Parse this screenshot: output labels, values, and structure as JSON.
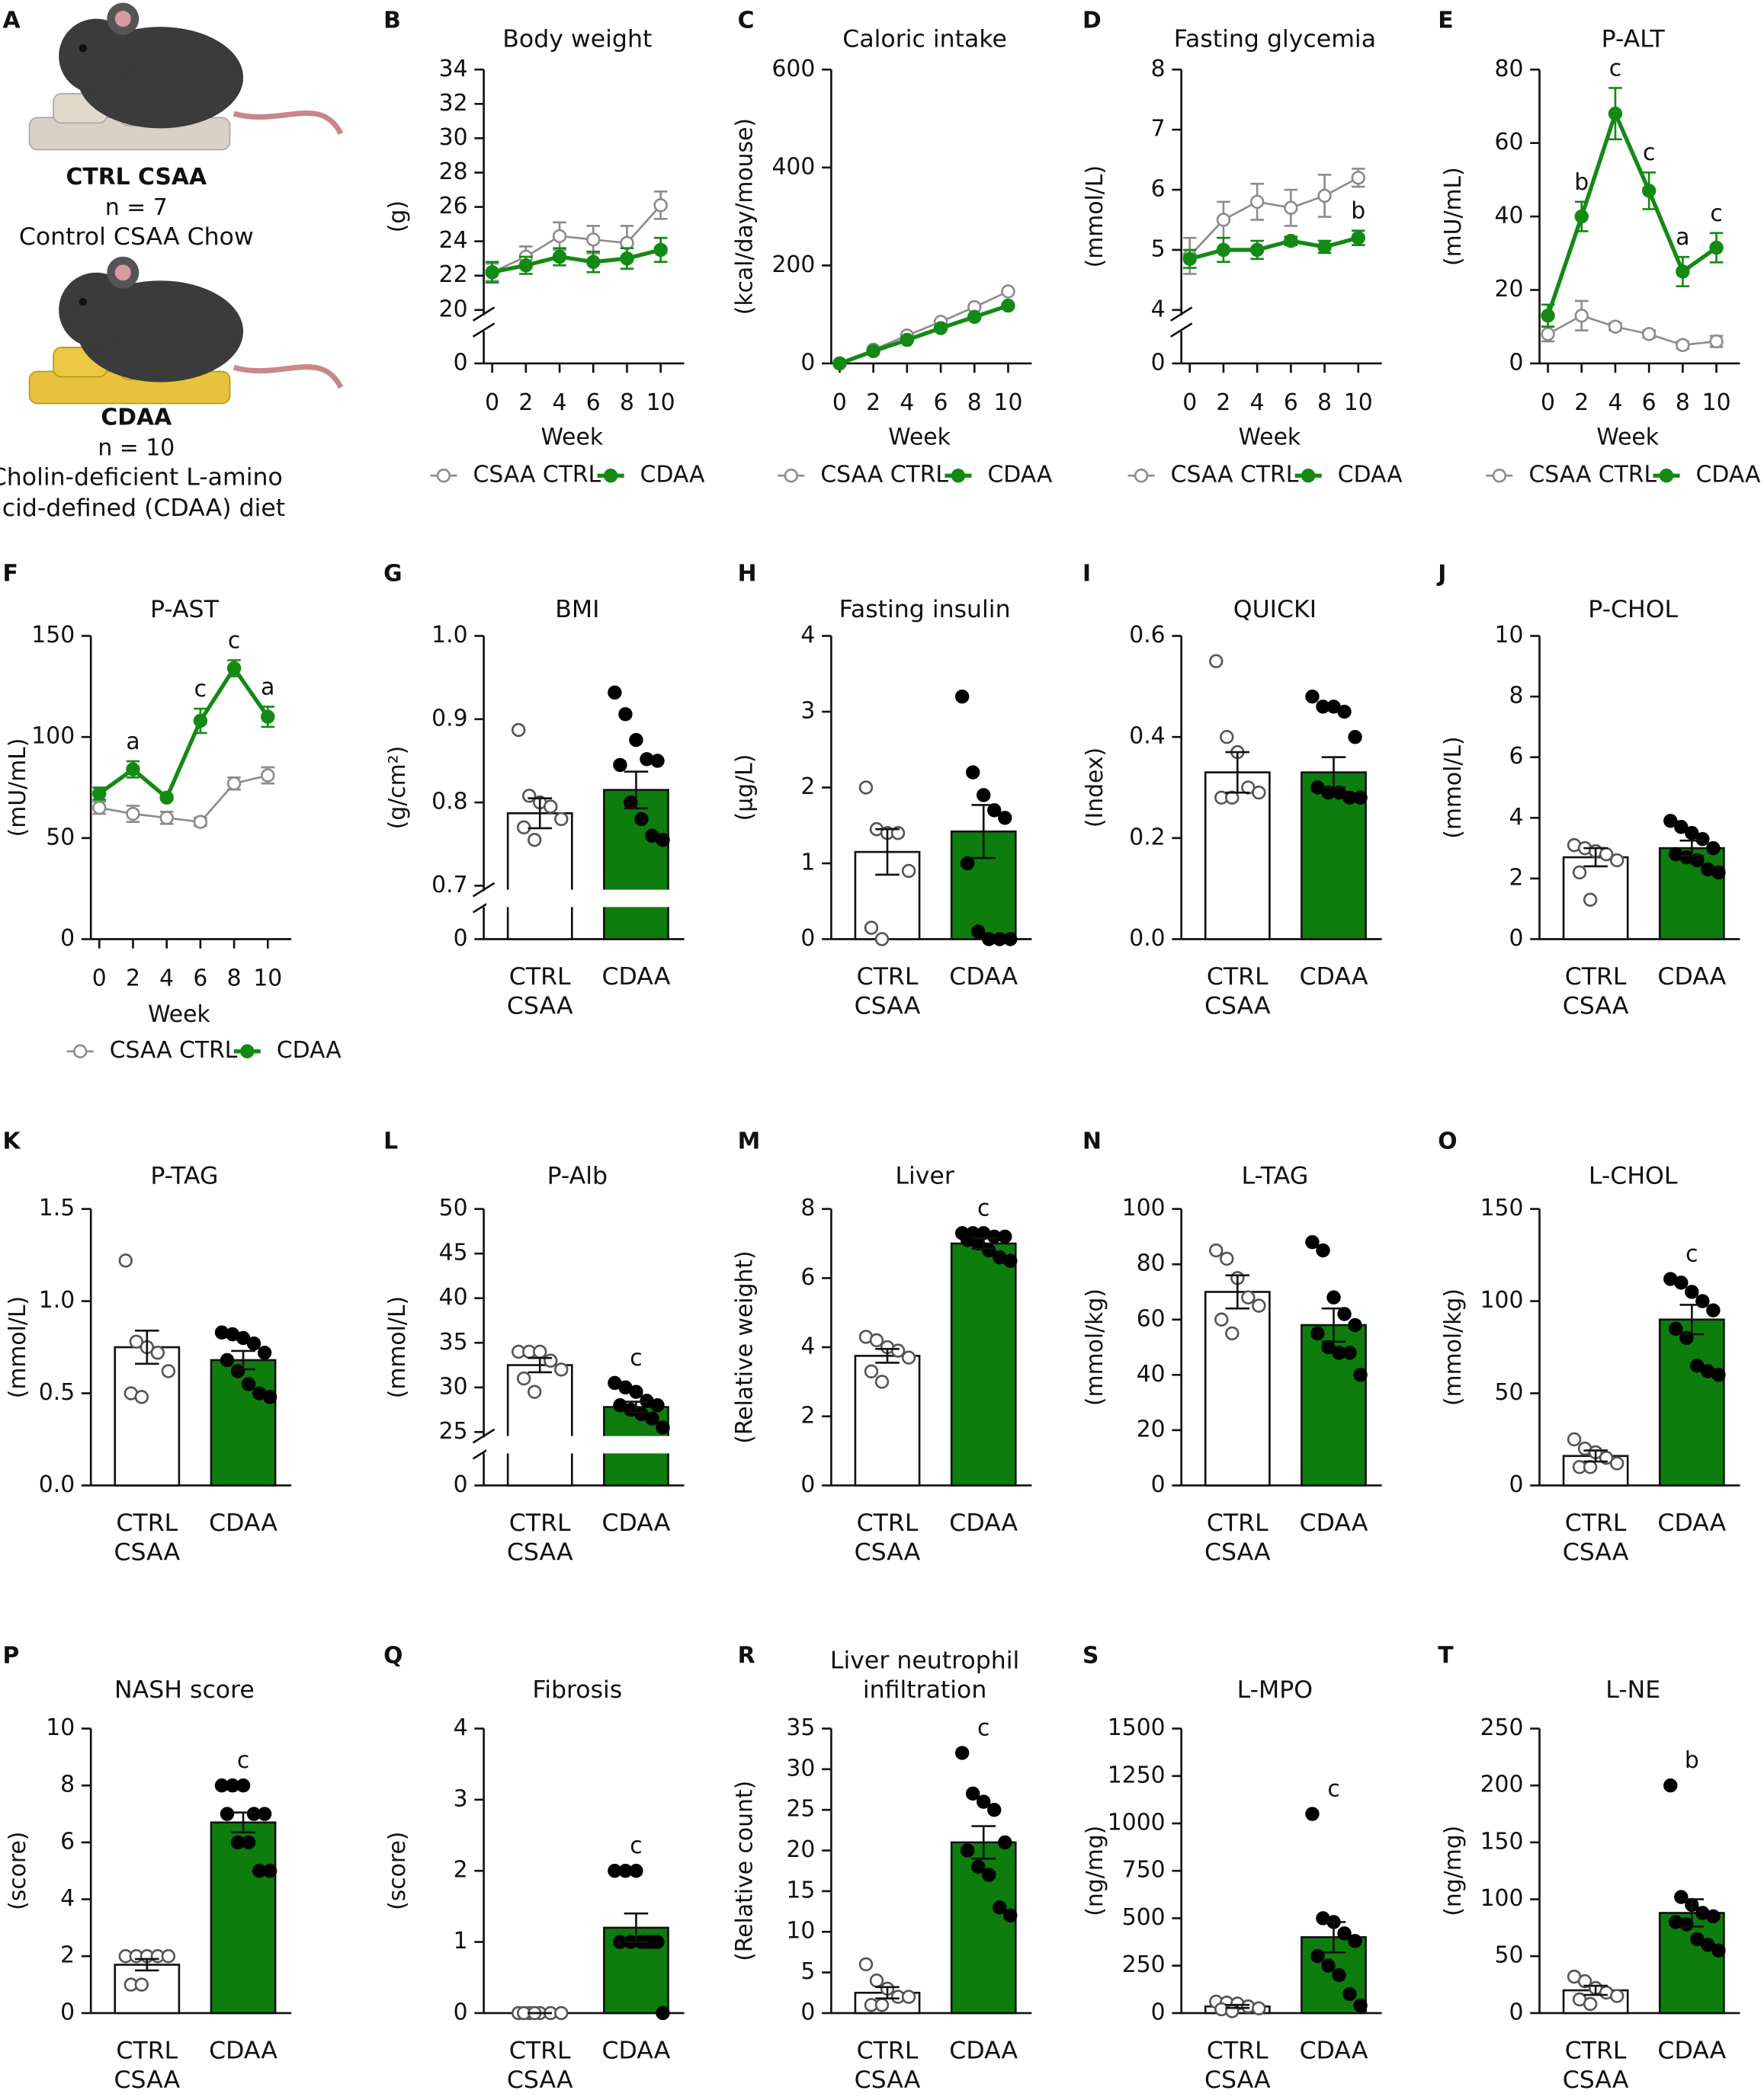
{
  "illustration": {
    "panel": "A",
    "groups": [
      {
        "name": "CTRL CSAA",
        "n": "n = 7",
        "diet": "Control CSAA Chow"
      },
      {
        "name": "CDAA",
        "n": "n = 10",
        "diet": "Cholin-deficient L-amino acid-defined (CDAA) diet"
      }
    ]
  },
  "chart_data": [
    {
      "panel": "B",
      "type": "line",
      "title": "Body weight",
      "ylabel": "(g)",
      "xlabel": "Week",
      "x": [
        0,
        2,
        4,
        6,
        8,
        10
      ],
      "xlim": [
        -0.5,
        11
      ],
      "xticks": [
        0,
        2,
        4,
        6,
        8,
        10
      ],
      "ylim": [
        20,
        34
      ],
      "yticks": [
        20,
        22,
        24,
        26,
        28,
        30,
        32,
        34
      ],
      "yticks_below_break": [
        0
      ],
      "series": [
        {
          "name": "CSAA CTRL",
          "color": "#8c8c8c",
          "marker_fill": "#ffffff",
          "values": [
            22.2,
            23.1,
            24.3,
            24.1,
            23.9,
            26.1
          ],
          "errors": [
            0.5,
            0.6,
            0.8,
            0.8,
            1.0,
            0.8
          ]
        },
        {
          "name": "CDAA",
          "color": "#138a13",
          "marker_fill": "#138a13",
          "values": [
            22.2,
            22.6,
            23.1,
            22.8,
            23.0,
            23.5
          ],
          "errors": [
            0.6,
            0.5,
            0.5,
            0.6,
            0.6,
            0.7
          ]
        }
      ]
    },
    {
      "panel": "C",
      "type": "line",
      "title": "Caloric intake",
      "ylabel": "(kcal/day/mouse)",
      "xlabel": "Week",
      "x": [
        0,
        2,
        4,
        6,
        8,
        10
      ],
      "xlim": [
        -0.5,
        11
      ],
      "xticks": [
        0,
        2,
        4,
        6,
        8,
        10
      ],
      "ylim": [
        0,
        600
      ],
      "yticks": [
        0,
        200,
        400,
        600
      ],
      "series": [
        {
          "name": "CSAA CTRL",
          "color": "#8c8c8c",
          "marker_fill": "#ffffff",
          "values": [
            0,
            28,
            57,
            85,
            115,
            147
          ],
          "errors": [
            0,
            1,
            2,
            2,
            2,
            2
          ]
        },
        {
          "name": "CDAA",
          "color": "#138a13",
          "marker_fill": "#138a13",
          "values": [
            0,
            25,
            48,
            72,
            95,
            118
          ],
          "errors": [
            0,
            1,
            2,
            2,
            2,
            2
          ]
        }
      ]
    },
    {
      "panel": "D",
      "type": "line",
      "title": "Fasting glycemia",
      "ylabel": "(mmol/L)",
      "xlabel": "Week",
      "x": [
        0,
        2,
        4,
        6,
        8,
        10
      ],
      "xlim": [
        -0.5,
        11
      ],
      "xticks": [
        0,
        2,
        4,
        6,
        8,
        10
      ],
      "ylim": [
        4,
        8
      ],
      "yticks": [
        4,
        5,
        6,
        7,
        8
      ],
      "yticks_below_break": [
        0
      ],
      "series": [
        {
          "name": "CSAA CTRL",
          "color": "#8c8c8c",
          "marker_fill": "#ffffff",
          "values": [
            4.9,
            5.5,
            5.8,
            5.7,
            5.9,
            6.2
          ],
          "errors": [
            0.3,
            0.3,
            0.3,
            0.3,
            0.35,
            0.15
          ]
        },
        {
          "name": "CDAA",
          "color": "#138a13",
          "marker_fill": "#138a13",
          "values": [
            4.85,
            5.0,
            5.0,
            5.15,
            5.05,
            5.2
          ],
          "errors": [
            0.15,
            0.2,
            0.15,
            0.07,
            0.1,
            0.12
          ],
          "annotations": [
            null,
            null,
            null,
            null,
            null,
            "b"
          ]
        }
      ]
    },
    {
      "panel": "E",
      "type": "line",
      "title": "P-ALT",
      "ylabel": "(mU/mL)",
      "xlabel": "Week",
      "x": [
        0,
        2,
        4,
        6,
        8,
        10
      ],
      "xlim": [
        -0.5,
        11
      ],
      "xticks": [
        0,
        2,
        4,
        6,
        8,
        10
      ],
      "ylim": [
        0,
        80
      ],
      "yticks": [
        0,
        20,
        40,
        60,
        80
      ],
      "series": [
        {
          "name": "CSAA CTRL",
          "color": "#8c8c8c",
          "marker_fill": "#ffffff",
          "values": [
            8,
            13,
            10,
            8,
            5,
            6
          ],
          "errors": [
            2,
            4,
            1,
            1,
            1,
            1.5
          ]
        },
        {
          "name": "CDAA",
          "color": "#138a13",
          "marker_fill": "#138a13",
          "values": [
            13,
            40,
            68,
            47,
            25,
            31.5
          ],
          "errors": [
            3,
            4,
            7,
            5,
            4,
            4
          ],
          "annotations": [
            null,
            "b",
            "c",
            "c",
            "a",
            "c"
          ]
        }
      ]
    },
    {
      "panel": "F",
      "type": "line",
      "title": "P-AST",
      "ylabel": "(mU/mL)",
      "xlabel": "Week",
      "x": [
        0,
        2,
        4,
        6,
        8,
        10
      ],
      "xlim": [
        -0.5,
        11
      ],
      "xticks": [
        0,
        2,
        4,
        6,
        8,
        10
      ],
      "ylim": [
        0,
        150
      ],
      "yticks": [
        0,
        50,
        100,
        150
      ],
      "series": [
        {
          "name": "CSAA CTRL",
          "color": "#8c8c8c",
          "marker_fill": "#ffffff",
          "values": [
            65,
            62,
            60,
            58,
            77,
            81
          ],
          "errors": [
            3,
            4,
            3,
            2,
            3,
            4
          ]
        },
        {
          "name": "CDAA",
          "color": "#138a13",
          "marker_fill": "#138a13",
          "values": [
            72,
            84,
            70,
            108,
            134,
            110
          ],
          "errors": [
            3,
            4,
            1,
            6,
            4,
            5
          ],
          "annotations": [
            null,
            "a",
            null,
            "c",
            "c",
            "a"
          ]
        }
      ]
    },
    {
      "panel": "G",
      "type": "bar",
      "title": "BMI",
      "ylabel": "(g/cm²)",
      "categories": [
        "CTRL CSAA",
        "CDAA"
      ],
      "colors": [
        "#ffffff",
        "#0d7d0d"
      ],
      "ylim": [
        0.7,
        1
      ],
      "yticks": [
        0.7,
        0.8,
        0.9,
        {
          "value": 1,
          "label": "1.0"
        }
      ],
      "yticks_below_break": [
        0
      ],
      "values": [
        0.787,
        0.815
      ],
      "errors": [
        0.018,
        0.022
      ],
      "points": [
        [
          0.887,
          0.808,
          0.8,
          0.795,
          0.78,
          0.77,
          0.755
        ],
        [
          0.932,
          0.906,
          0.875,
          0.852,
          0.85,
          0.845,
          0.8,
          0.78,
          0.76,
          0.755
        ]
      ]
    },
    {
      "panel": "H",
      "type": "bar",
      "title": "Fasting insulin",
      "ylabel": "(µg/L)",
      "categories": [
        "CTRL CSAA",
        "CDAA"
      ],
      "colors": [
        "#ffffff",
        "#0d7d0d"
      ],
      "ylim": [
        0,
        4
      ],
      "yticks": [
        0,
        1,
        2,
        3,
        4
      ],
      "values": [
        1.15,
        1.42
      ],
      "errors": [
        0.3,
        0.35
      ],
      "points": [
        [
          2.0,
          1.45,
          1.4,
          1.4,
          0.9,
          0.15,
          0.0
        ],
        [
          3.2,
          2.2,
          1.9,
          1.7,
          1.6,
          1.0,
          0.1,
          0.0,
          0.0,
          0.0
        ]
      ]
    },
    {
      "panel": "I",
      "type": "bar",
      "title": "QUICKI",
      "ylabel": "(Index)",
      "categories": [
        "CTRL CSAA",
        "CDAA"
      ],
      "colors": [
        "#ffffff",
        "#0d7d0d"
      ],
      "ylim": [
        0,
        0.6
      ],
      "yticks": [
        {
          "value": 0,
          "label": "0.0"
        },
        0.2,
        0.4,
        0.6
      ],
      "values": [
        0.33,
        0.33
      ],
      "errors": [
        0.04,
        0.03
      ],
      "points": [
        [
          0.55,
          0.4,
          0.37,
          0.3,
          0.29,
          0.28,
          0.28
        ],
        [
          0.48,
          0.46,
          0.46,
          0.45,
          0.4,
          0.3,
          0.29,
          0.29,
          0.28,
          0.28
        ]
      ]
    },
    {
      "panel": "J",
      "type": "bar",
      "title": "P-CHOL",
      "ylabel": "(mmol/L)",
      "categories": [
        "CTRL CSAA",
        "CDAA"
      ],
      "colors": [
        "#ffffff",
        "#0d7d0d"
      ],
      "ylim": [
        0,
        10
      ],
      "yticks": [
        0,
        2,
        4,
        6,
        8,
        10
      ],
      "values": [
        2.7,
        3.0
      ],
      "errors": [
        0.3,
        0.25
      ],
      "points": [
        [
          3.1,
          3.0,
          2.9,
          2.8,
          2.6,
          2.2,
          1.3
        ],
        [
          3.9,
          3.7,
          3.5,
          3.3,
          3.0,
          2.8,
          2.7,
          2.6,
          2.3,
          2.2
        ]
      ]
    },
    {
      "panel": "K",
      "type": "bar",
      "title": "P-TAG",
      "ylabel": "(mmol/L)",
      "categories": [
        "CTRL CSAA",
        "CDAA"
      ],
      "colors": [
        "#ffffff",
        "#0d7d0d"
      ],
      "ylim": [
        0,
        1.5
      ],
      "yticks": [
        {
          "value": 0,
          "label": "0.0"
        },
        0.5,
        {
          "value": 1,
          "label": "1.0"
        },
        1.5
      ],
      "values": [
        0.75,
        0.68
      ],
      "errors": [
        0.09,
        0.05
      ],
      "points": [
        [
          1.22,
          0.78,
          0.75,
          0.72,
          0.62,
          0.5,
          0.48
        ],
        [
          0.83,
          0.82,
          0.8,
          0.77,
          0.72,
          0.68,
          0.62,
          0.55,
          0.5,
          0.48
        ]
      ]
    },
    {
      "panel": "L",
      "type": "bar",
      "title": "P-Alb",
      "ylabel": "(mmol/L)",
      "categories": [
        "CTRL CSAA",
        "CDAA"
      ],
      "colors": [
        "#ffffff",
        "#0d7d0d"
      ],
      "ylim": [
        25,
        50
      ],
      "yticks": [
        25,
        30,
        35,
        40,
        45,
        50
      ],
      "yticks_below_break": [
        0
      ],
      "values": [
        32.5,
        27.8
      ],
      "errors": [
        0.8,
        0.6
      ],
      "annotations": [
        null,
        "c"
      ],
      "points": [
        [
          34,
          34,
          34,
          33,
          32,
          31,
          29.5
        ],
        [
          30.5,
          30,
          29.5,
          28.5,
          28,
          28,
          27.5,
          27,
          26.5,
          25.5
        ]
      ]
    },
    {
      "panel": "M",
      "type": "bar",
      "title": "Liver",
      "ylabel": "(Relative weight)",
      "categories": [
        "CTRL CSAA",
        "CDAA"
      ],
      "colors": [
        "#ffffff",
        "#0d7d0d"
      ],
      "ylim": [
        0,
        8
      ],
      "yticks": [
        0,
        2,
        4,
        6,
        8
      ],
      "values": [
        3.75,
        7.0
      ],
      "errors": [
        0.2,
        0.15
      ],
      "annotations": [
        null,
        "c"
      ],
      "points": [
        [
          4.3,
          4.2,
          4.0,
          3.9,
          3.7,
          3.3,
          3.0
        ],
        [
          7.3,
          7.3,
          7.3,
          7.2,
          7.2,
          7.1,
          7.0,
          6.8,
          6.6,
          6.5
        ]
      ]
    },
    {
      "panel": "N",
      "type": "bar",
      "title": "L-TAG",
      "ylabel": "(mmol/kg)",
      "categories": [
        "CTRL CSAA",
        "CDAA"
      ],
      "colors": [
        "#ffffff",
        "#0d7d0d"
      ],
      "ylim": [
        0,
        100
      ],
      "yticks": [
        0,
        20,
        40,
        60,
        80,
        100
      ],
      "values": [
        70,
        58
      ],
      "errors": [
        6,
        6
      ],
      "points": [
        [
          85,
          82,
          75,
          68,
          65,
          60,
          55
        ],
        [
          88,
          85,
          68,
          62,
          58,
          55,
          50,
          48,
          48,
          40
        ]
      ]
    },
    {
      "panel": "O",
      "type": "bar",
      "title": "L-CHOL",
      "ylabel": "(mmol/kg)",
      "categories": [
        "CTRL CSAA",
        "CDAA"
      ],
      "colors": [
        "#ffffff",
        "#0d7d0d"
      ],
      "ylim": [
        0,
        150
      ],
      "yticks": [
        0,
        50,
        100,
        150
      ],
      "values": [
        16,
        90
      ],
      "errors": [
        3,
        8
      ],
      "annotations": [
        null,
        "c"
      ],
      "points": [
        [
          25,
          20,
          18,
          15,
          12,
          10,
          10
        ],
        [
          112,
          110,
          105,
          100,
          95,
          85,
          80,
          65,
          62,
          60
        ]
      ]
    },
    {
      "panel": "P",
      "type": "bar",
      "title": "NASH score",
      "ylabel": "(score)",
      "categories": [
        "CTRL CSAA",
        "CDAA"
      ],
      "colors": [
        "#ffffff",
        "#0d7d0d"
      ],
      "ylim": [
        0,
        10
      ],
      "yticks": [
        0,
        2,
        4,
        6,
        8,
        10
      ],
      "values": [
        1.7,
        6.7
      ],
      "errors": [
        0.2,
        0.35
      ],
      "annotations": [
        null,
        "c"
      ],
      "points": [
        [
          2,
          2,
          2,
          2,
          2,
          1,
          1
        ],
        [
          8,
          8,
          8,
          7,
          7,
          7,
          6,
          6,
          5,
          5
        ]
      ]
    },
    {
      "panel": "Q",
      "type": "bar",
      "title": "Fibrosis",
      "ylabel": "(score)",
      "categories": [
        "CTRL CSAA",
        "CDAA"
      ],
      "colors": [
        "#ffffff",
        "#0d7d0d"
      ],
      "ylim": [
        0,
        4
      ],
      "yticks": [
        0,
        1,
        2,
        3,
        4
      ],
      "values": [
        0,
        1.2
      ],
      "errors": [
        0,
        0.2
      ],
      "annotations": [
        null,
        "c"
      ],
      "points": [
        [
          0,
          0,
          0,
          0,
          0,
          0,
          0
        ],
        [
          2,
          2,
          2,
          1,
          1,
          1,
          1,
          1,
          1,
          0
        ]
      ]
    },
    {
      "panel": "R",
      "type": "bar",
      "title": "Liver neutrophil infiltration",
      "ylabel": "(Relative count)",
      "categories": [
        "CTRL CSAA",
        "CDAA"
      ],
      "colors": [
        "#ffffff",
        "#0d7d0d"
      ],
      "ylim": [
        0,
        35
      ],
      "yticks": [
        0,
        5,
        10,
        15,
        20,
        25,
        30,
        35
      ],
      "values": [
        2.5,
        21
      ],
      "errors": [
        0.7,
        2
      ],
      "annotations": [
        null,
        "c"
      ],
      "points": [
        [
          6,
          4,
          3,
          2,
          2,
          1,
          1
        ],
        [
          32,
          27,
          26,
          25,
          21,
          20,
          18,
          17,
          13,
          12
        ]
      ]
    },
    {
      "panel": "S",
      "type": "bar",
      "title": "L-MPO",
      "ylabel": "(ng/mg)",
      "categories": [
        "CTRL CSAA",
        "CDAA"
      ],
      "colors": [
        "#ffffff",
        "#0d7d0d"
      ],
      "ylim": [
        0,
        1500
      ],
      "yticks": [
        0,
        250,
        500,
        750,
        1000,
        1250,
        1500
      ],
      "values": [
        35,
        400
      ],
      "errors": [
        8,
        80
      ],
      "annotations": [
        null,
        "c"
      ],
      "points": [
        [
          60,
          55,
          50,
          35,
          25,
          20,
          10
        ],
        [
          1050,
          500,
          480,
          420,
          380,
          300,
          250,
          200,
          100,
          40
        ]
      ]
    },
    {
      "panel": "T",
      "type": "bar",
      "title": "L-NE",
      "ylabel": "(ng/mg)",
      "categories": [
        "CTRL CSAA",
        "CDAA"
      ],
      "colors": [
        "#ffffff",
        "#0d7d0d"
      ],
      "ylim": [
        0,
        250
      ],
      "yticks": [
        0,
        50,
        100,
        150,
        200,
        250
      ],
      "values": [
        20,
        88
      ],
      "errors": [
        4,
        12
      ],
      "annotations": [
        null,
        "b"
      ],
      "points": [
        [
          32,
          28,
          22,
          18,
          15,
          12,
          8
        ],
        [
          200,
          102,
          95,
          88,
          85,
          80,
          78,
          65,
          60,
          55
        ]
      ]
    }
  ]
}
